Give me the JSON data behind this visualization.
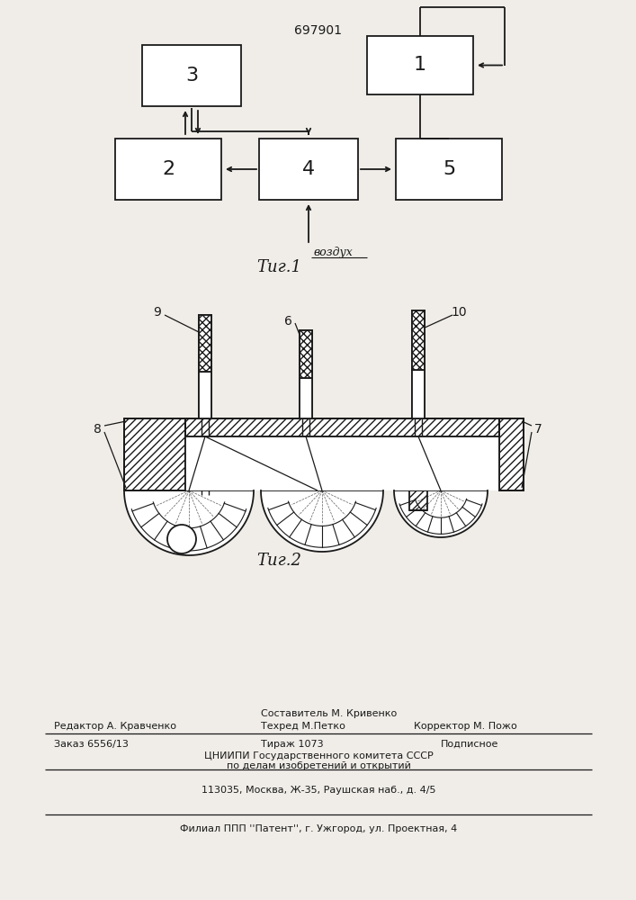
{
  "patent_number": "697901",
  "fig1_label": "Τиг.1",
  "fig2_label": "Τиг.2",
  "vozdux_label": "воздух",
  "bg_color": "#f0ede8",
  "line_color": "#1a1a1a",
  "footer_compiler_top": "Составитель М. Кривенко",
  "footer_editor": "Редактор А. Кравченко",
  "footer_techred": "Техред М.Петко",
  "footer_corrector": "Корректор М. Пожо",
  "footer_order": "Заказ 6556/13",
  "footer_tirazh": "Тираж 1073",
  "footer_podp": "Подписное",
  "footer_org": "ЦНИИПИ Государственного комитета СССР",
  "footer_dept": "по делам изобретений и открытий",
  "footer_addr": "113035, Москва, Ж-35, Раушская наб., д. 4/5",
  "footer_filial": "Филиал ППП ''Патент'', г. Ужгород, ул. Проектная, 4"
}
